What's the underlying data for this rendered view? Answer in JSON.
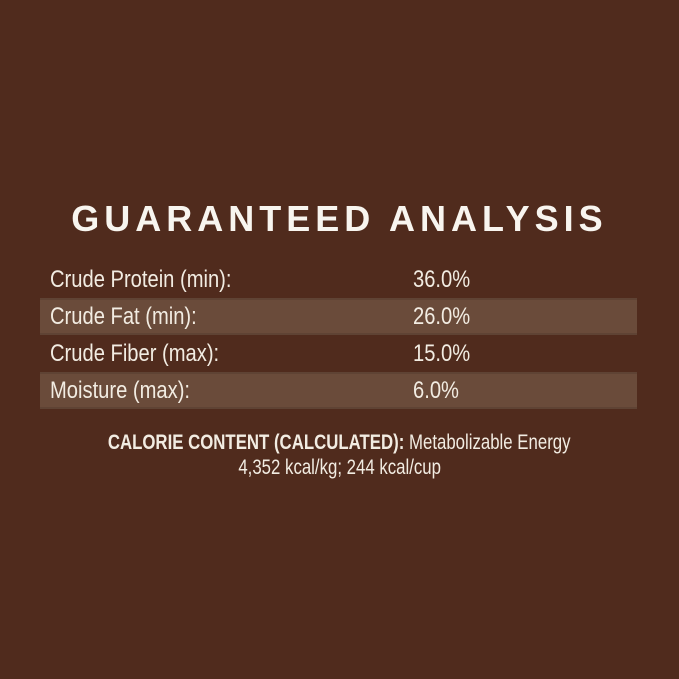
{
  "colors": {
    "background": "#502B1D",
    "stripe": "#6A4B3A",
    "text": "#F2ECE2",
    "title": "#F8F5EF"
  },
  "title": "GUARANTEED ANALYSIS",
  "analysis": {
    "rows": [
      {
        "label": "Crude Protein (min):",
        "value": "36.0%",
        "striped": false
      },
      {
        "label": "Crude Fat (min):",
        "value": "26.0%",
        "striped": true
      },
      {
        "label": "Crude Fiber (max):",
        "value": "15.0%",
        "striped": false
      },
      {
        "label": "Moisture (max):",
        "value": "6.0%",
        "striped": true
      }
    ]
  },
  "calorie": {
    "heading": "CALORIE CONTENT (CALCULATED):",
    "text": "Metabolizable Energy",
    "line2": "4,352 kcal/kg; 244 kcal/cup"
  }
}
